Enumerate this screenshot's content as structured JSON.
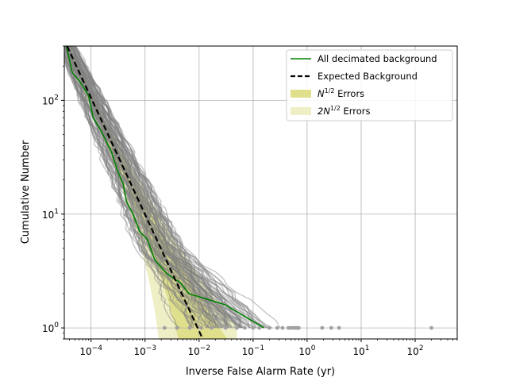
{
  "chart_data": {
    "type": "line",
    "title": "",
    "xlabel": "Inverse False Alarm Rate (yr)",
    "ylabel": "Cumulative Number",
    "xscale": "log",
    "yscale": "log",
    "xlim": [
      3.2e-05,
      600
    ],
    "ylim": [
      0.8,
      300
    ],
    "grid": true,
    "legend_position": "top-right",
    "x_ticks": [
      {
        "value": 0.0001,
        "base": "10",
        "exp": "−4"
      },
      {
        "value": 0.001,
        "base": "10",
        "exp": "−3"
      },
      {
        "value": 0.01,
        "base": "10",
        "exp": "−2"
      },
      {
        "value": 0.1,
        "base": "10",
        "exp": "−1"
      },
      {
        "value": 1,
        "base": "10",
        "exp": "0"
      },
      {
        "value": 10,
        "base": "10",
        "exp": "1"
      },
      {
        "value": 100,
        "base": "10",
        "exp": "2"
      }
    ],
    "y_ticks": [
      {
        "value": 1,
        "base": "10",
        "exp": "0"
      },
      {
        "value": 10,
        "base": "10",
        "exp": "1"
      },
      {
        "value": 100,
        "base": "10",
        "exp": "2"
      }
    ],
    "legend": [
      {
        "label": "All decimated background",
        "kind": "line",
        "color": "#008000"
      },
      {
        "label": "Expected Background",
        "kind": "dashed",
        "color": "#000000"
      },
      {
        "label_main": "N",
        "label_sup": "1/2",
        "label_tail": " Errors",
        "kind": "patch",
        "color": "#e0e08c"
      },
      {
        "label_main": "2N",
        "label_sup": "1/2",
        "label_tail": " Errors",
        "kind": "patch",
        "color": "#efefc6"
      }
    ],
    "series": [
      {
        "name": "All decimated background",
        "color": "#008000",
        "points": [
          [
            3.5e-05,
            300
          ],
          [
            4.5e-05,
            175
          ],
          [
            6e-05,
            150
          ],
          [
            9e-05,
            110
          ],
          [
            0.00011,
            70
          ],
          [
            0.00015,
            55
          ],
          [
            0.00024,
            35
          ],
          [
            0.0003,
            25
          ],
          [
            0.0004,
            18
          ],
          [
            0.00045,
            13
          ],
          [
            0.0006,
            10
          ],
          [
            0.0008,
            7
          ],
          [
            0.0011,
            6
          ],
          [
            0.0015,
            4
          ],
          [
            0.0025,
            3
          ],
          [
            0.0045,
            2.5
          ],
          [
            0.0065,
            2
          ],
          [
            0.03,
            1.6
          ],
          [
            0.16,
            1
          ]
        ]
      },
      {
        "name": "Expected Background",
        "color": "#000000",
        "dashed": true,
        "points": [
          [
            3.6e-05,
            300
          ],
          [
            0.0117,
            0.8
          ]
        ]
      }
    ],
    "outlier_points": [
      0.0023,
      0.0039,
      0.0067,
      0.011,
      0.017,
      0.031,
      0.05,
      0.07,
      0.1,
      0.13,
      0.2,
      0.28,
      0.35,
      0.45,
      0.5,
      0.55,
      0.6,
      0.62,
      0.65,
      0.7,
      1.9,
      2.8,
      3.9,
      200
    ],
    "colors": {
      "background_trials": "#808080",
      "outlier_points": "#a0a0a0",
      "grid": "#b0b0b0",
      "sigma1": "#e0e08c",
      "sigma2": "#efefc6"
    }
  }
}
